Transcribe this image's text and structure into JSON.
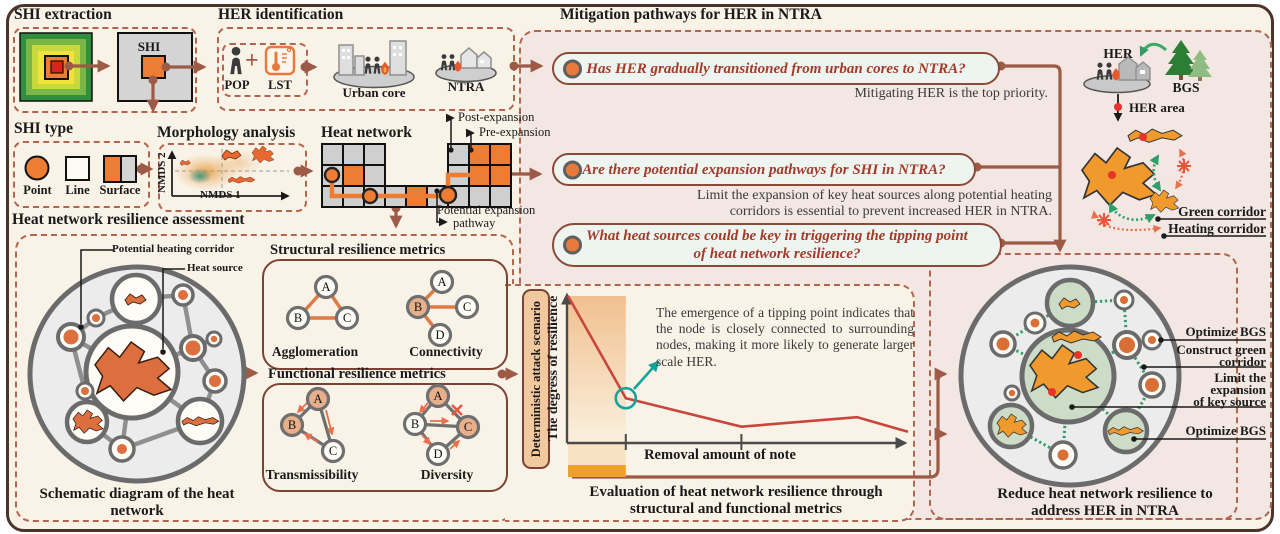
{
  "shi_extraction": {
    "title": "SHI extraction",
    "shi_label": "SHI"
  },
  "her_identification": {
    "title": "HER identification",
    "pop": "POP",
    "plus": "+",
    "lst": "LST",
    "urban_core": "Urban core",
    "ntra": "NTRA"
  },
  "shi_type": {
    "title": "SHI type",
    "point": "Point",
    "line": "Line",
    "surface": "Surface"
  },
  "morphology": {
    "title": "Morphology analysis",
    "xlabel": "NMDS 1",
    "ylabel": "NMDS 2"
  },
  "heat_network": {
    "title": "Heat network",
    "post_expansion": "Post-expansion",
    "pre_expansion": "Pre-expansion",
    "potential_line1": "Potential expansion",
    "potential_line2": "pathway"
  },
  "mitigation": {
    "title": "Mitigation pathways for HER in NTRA",
    "q1": "Has HER gradually transitioned from urban cores to NTRA?",
    "a1": "Mitigating HER is the top priority.",
    "q2": "Are there potential expansion pathways for SHI in NTRA?",
    "a2_line1": "Limit the expansion of key heat sources along potential heating",
    "a2_line2": "corridors is essential to prevent increased HER in NTRA.",
    "q3_line1": "What heat sources could be key in triggering the tipping point",
    "q3_line2": "of heat network resilience?"
  },
  "her_bgs": {
    "her": "HER",
    "bgs": "BGS",
    "her_area": "HER area",
    "green_corridor": "Green corridor",
    "heating_corridor": "Heating corridor"
  },
  "assessment": {
    "title": "Heat network resilience assessment",
    "corridor_label": "Potential heating corridor",
    "heat_source_label": "Heat source",
    "caption_line1": "Schematic diagram of the heat",
    "caption_line2": "network"
  },
  "metrics": {
    "structural_title": "Structural resilience metrics",
    "functional_title": "Functional resilience metrics",
    "agglomeration": "Agglomeration",
    "connectivity": "Connectivity",
    "transmissibility": "Transmissibility",
    "diversity": "Diversity",
    "nodes": {
      "a": "A",
      "b": "B",
      "c": "C",
      "d": "D"
    }
  },
  "evaluation": {
    "scenario_label": "Deterministic attack scenario",
    "ylabel": "The degress of resilience",
    "xlabel": "Removal amount of note",
    "annotation": "The emergence of a tipping point indicates that the node is closely connected to surrounding nodes, making it more likely to generate larger scale HER.",
    "caption_line1": "Evaluation of heat network resilience through",
    "caption_line2": "structural and functional metrics"
  },
  "reduce": {
    "caption_line1": "Reduce heat network resilience to",
    "caption_line2": "address HER in NTRA",
    "callout1": "Optimize BGS",
    "callout2_line1": "Construct green",
    "callout2_line2": "corridor",
    "callout3_line1": "Limit the",
    "callout3_line2": "expansion",
    "callout3_line3": "of key source",
    "callout4": "Optimize BGS"
  },
  "colors": {
    "accent_brown": "#9c5a47",
    "question_red": "#a23b2a",
    "orange": "#e8793c",
    "chart_red": "#c9463c",
    "teal": "#14a39a",
    "green": "#2f9e68",
    "pink_bg": "#f3e7e3",
    "cream_bg": "#f8f2e7"
  },
  "chart_data": {
    "type": "line",
    "title": "Evaluation of heat network resilience through structural and functional metrics",
    "xlabel": "Removal amount of note",
    "ylabel": "The degress of resilience",
    "x_rel": [
      0,
      0.17,
      0.51,
      0.85,
      1.0
    ],
    "y_rel": [
      1.0,
      0.3,
      0.105,
      0.17,
      0.07
    ],
    "tipping_point_rel": [
      0.17,
      0.3
    ],
    "x_ticks_rel": [
      0.17,
      0.51
    ],
    "shaded_region_x_rel": [
      0,
      0.17
    ],
    "annotation": "The emergence of a tipping point indicates that the node is closely connected to surrounding nodes, making it more likely to generate larger scale HER.",
    "axes_unlabeled": true,
    "grid": false,
    "legend": false
  }
}
